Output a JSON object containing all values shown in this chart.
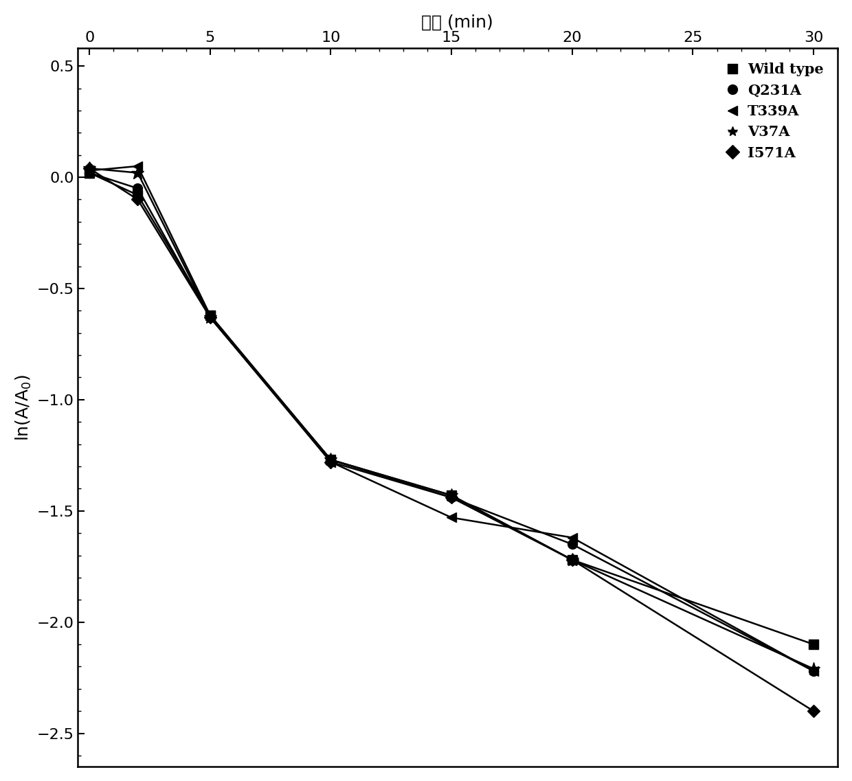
{
  "xlabel": "时间 (min)",
  "ylabel": "ln(A/A$_0$)",
  "xlim": [
    -0.5,
    31
  ],
  "ylim": [
    -2.65,
    0.58
  ],
  "xticks": [
    0,
    5,
    10,
    15,
    20,
    25,
    30
  ],
  "yticks": [
    0.5,
    0.0,
    -0.5,
    -1.0,
    -1.5,
    -2.0,
    -2.5
  ],
  "series": [
    {
      "label": "Wild type",
      "marker": "s",
      "color": "#000000",
      "x": [
        0,
        2,
        5,
        10,
        15,
        20,
        30
      ],
      "y": [
        0.02,
        -0.08,
        -0.62,
        -1.27,
        -1.43,
        -1.72,
        -2.1
      ]
    },
    {
      "label": "Q231A",
      "marker": "o",
      "color": "#000000",
      "x": [
        0,
        2,
        5,
        10,
        15,
        20,
        30
      ],
      "y": [
        0.02,
        -0.05,
        -0.63,
        -1.27,
        -1.44,
        -1.65,
        -2.22
      ]
    },
    {
      "label": "T339A",
      "marker": "<",
      "color": "#000000",
      "x": [
        0,
        2,
        5,
        10,
        15,
        20,
        30
      ],
      "y": [
        0.03,
        0.05,
        -0.62,
        -1.28,
        -1.53,
        -1.62,
        -2.22
      ]
    },
    {
      "label": "V37A",
      "marker": "*",
      "color": "#000000",
      "x": [
        0,
        2,
        5,
        10,
        15,
        20,
        30
      ],
      "y": [
        0.04,
        0.02,
        -0.63,
        -1.27,
        -1.43,
        -1.72,
        -2.21
      ]
    },
    {
      "label": "I571A",
      "marker": "D",
      "color": "#000000",
      "x": [
        0,
        2,
        5,
        10,
        15,
        20,
        30
      ],
      "y": [
        0.04,
        -0.1,
        -0.63,
        -1.28,
        -1.44,
        -1.72,
        -2.4
      ]
    }
  ],
  "legend_loc": "upper right",
  "label_fontsize": 18,
  "tick_fontsize": 16,
  "legend_fontsize": 15,
  "linewidth": 1.8,
  "markersize": 10
}
